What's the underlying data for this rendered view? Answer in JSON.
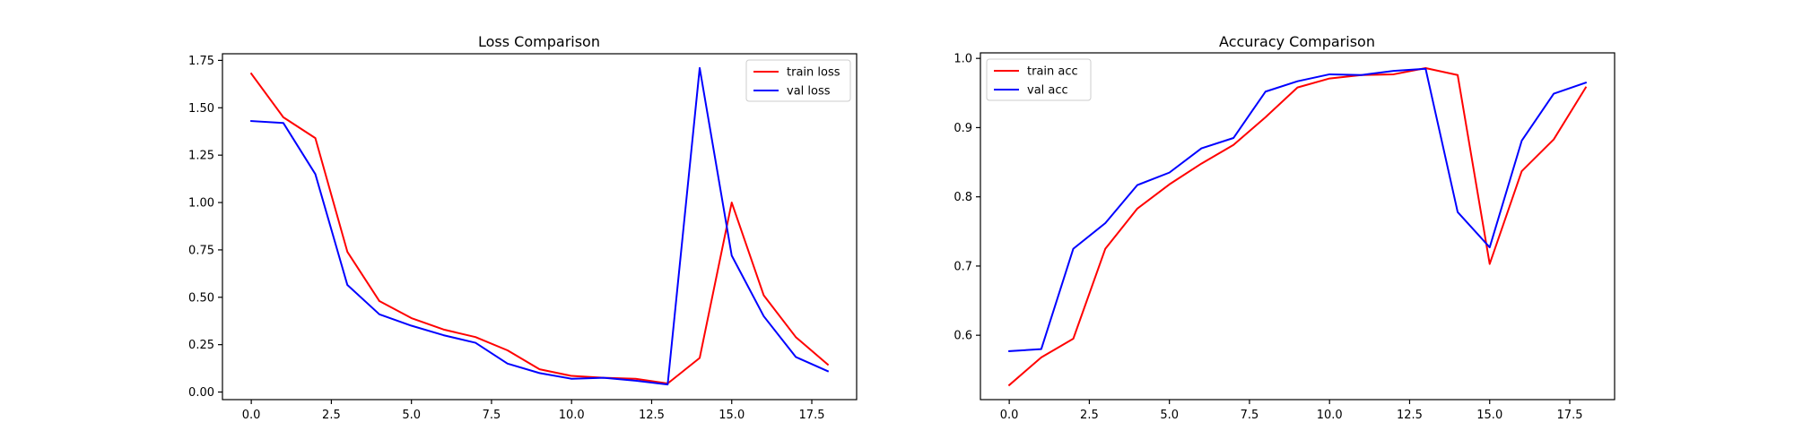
{
  "chart_data": [
    {
      "type": "line",
      "title": "Loss Comparison",
      "xlabel": "",
      "ylabel": "",
      "x": [
        0,
        1,
        2,
        3,
        4,
        5,
        6,
        7,
        8,
        9,
        10,
        11,
        12,
        13,
        14,
        15,
        16,
        17,
        18
      ],
      "xlim": [
        -0.9,
        18.9
      ],
      "ylim": [
        -0.04,
        1.785
      ],
      "xticks": [
        0.0,
        2.5,
        5.0,
        7.5,
        10.0,
        12.5,
        15.0,
        17.5
      ],
      "xtick_labels": [
        "0.0",
        "2.5",
        "5.0",
        "7.5",
        "10.0",
        "12.5",
        "15.0",
        "17.5"
      ],
      "yticks": [
        0.0,
        0.25,
        0.5,
        0.75,
        1.0,
        1.25,
        1.5,
        1.75
      ],
      "ytick_labels": [
        "0.00",
        "0.25",
        "0.50",
        "0.75",
        "1.00",
        "1.25",
        "1.50",
        "1.75"
      ],
      "grid": false,
      "legend_position": "upper right",
      "series": [
        {
          "name": "train loss",
          "color": "#ff0000",
          "values": [
            1.68,
            1.45,
            1.34,
            0.74,
            0.48,
            0.39,
            0.33,
            0.29,
            0.22,
            0.12,
            0.085,
            0.075,
            0.07,
            0.045,
            0.18,
            1.0,
            0.51,
            0.29,
            0.145
          ]
        },
        {
          "name": "val loss",
          "color": "#0000ff",
          "values": [
            1.43,
            1.42,
            1.15,
            0.565,
            0.41,
            0.35,
            0.3,
            0.26,
            0.15,
            0.1,
            0.07,
            0.075,
            0.06,
            0.04,
            1.71,
            0.72,
            0.4,
            0.185,
            0.11
          ]
        }
      ]
    },
    {
      "type": "line",
      "title": "Accuracy Comparison",
      "xlabel": "",
      "ylabel": "",
      "x": [
        0,
        1,
        2,
        3,
        4,
        5,
        6,
        7,
        8,
        9,
        10,
        11,
        12,
        13,
        14,
        15,
        16,
        17,
        18
      ],
      "xlim": [
        -0.9,
        18.9
      ],
      "ylim": [
        0.507,
        1.008
      ],
      "xticks": [
        0.0,
        2.5,
        5.0,
        7.5,
        10.0,
        12.5,
        15.0,
        17.5
      ],
      "xtick_labels": [
        "0.0",
        "2.5",
        "5.0",
        "7.5",
        "10.0",
        "12.5",
        "15.0",
        "17.5"
      ],
      "yticks": [
        0.6,
        0.7,
        0.8,
        0.9,
        1.0
      ],
      "ytick_labels": [
        "0.6",
        "0.7",
        "0.8",
        "0.9",
        "1.0"
      ],
      "grid": false,
      "legend_position": "upper left",
      "series": [
        {
          "name": "train acc",
          "color": "#ff0000",
          "values": [
            0.528,
            0.568,
            0.595,
            0.725,
            0.783,
            0.818,
            0.848,
            0.875,
            0.915,
            0.958,
            0.971,
            0.976,
            0.977,
            0.986,
            0.976,
            0.703,
            0.837,
            0.883,
            0.958
          ]
        },
        {
          "name": "val acc",
          "color": "#0000ff",
          "values": [
            0.577,
            0.58,
            0.725,
            0.762,
            0.817,
            0.835,
            0.87,
            0.885,
            0.952,
            0.967,
            0.977,
            0.976,
            0.982,
            0.985,
            0.778,
            0.727,
            0.881,
            0.949,
            0.965
          ]
        }
      ]
    }
  ]
}
